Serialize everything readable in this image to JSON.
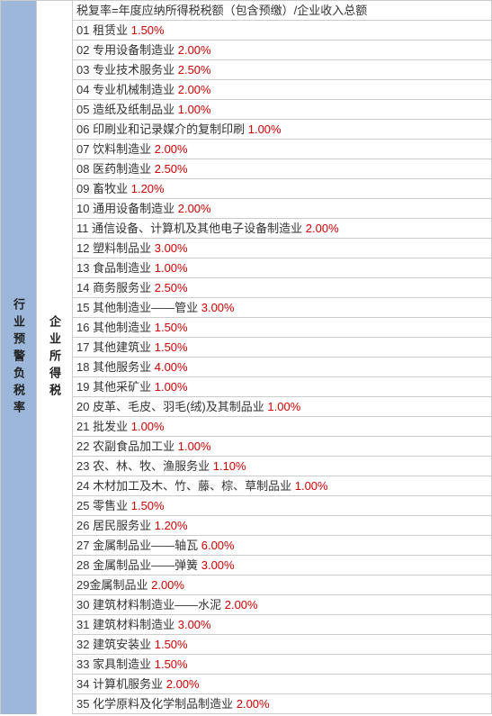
{
  "leftLabel": "行业预警负税率",
  "midLabel": "企业所得税",
  "headerRow": "税复率=年度应纳所得税税额（包含预缴）/企业收入总额",
  "rateColor": "#d00000",
  "borderColor": "#cccccc",
  "leftBg": "#9cb7d9",
  "rows": [
    {
      "num": "01",
      "name": "租赁业",
      "rate": "1.50%"
    },
    {
      "num": "02",
      "name": "专用设备制造业",
      "rate": "2.00%"
    },
    {
      "num": "03",
      "name": "专业技术服务业",
      "rate": "2.50%"
    },
    {
      "num": "04",
      "name": "专业机械制造业",
      "rate": "2.00%"
    },
    {
      "num": "05",
      "name": "造纸及纸制品业",
      "rate": "1.00%"
    },
    {
      "num": "06",
      "name": "印刷业和记录媒介的复制印刷",
      "rate": "1.00%"
    },
    {
      "num": "07",
      "name": "饮料制造业",
      "rate": "2.00%"
    },
    {
      "num": "08",
      "name": "医药制造业",
      "rate": "2.50%"
    },
    {
      "num": "09",
      "name": "畜牧业",
      "rate": "1.20%"
    },
    {
      "num": "10",
      "name": "通用设备制造业",
      "rate": "2.00%"
    },
    {
      "num": "11",
      "name": "通信设备、计算机及其他电子设备制造业",
      "rate": "2.00%"
    },
    {
      "num": "12",
      "name": "塑料制品业",
      "rate": "3.00%"
    },
    {
      "num": "13",
      "name": "食品制造业",
      "rate": "1.00%"
    },
    {
      "num": "14",
      "name": "商务服务业",
      "rate": "2.50%"
    },
    {
      "num": "15",
      "name": "其他制造业——管业",
      "rate": "3.00%"
    },
    {
      "num": "16",
      "name": "其他制造业",
      "rate": "1.50%"
    },
    {
      "num": "17",
      "name": "其他建筑业",
      "rate": "1.50%"
    },
    {
      "num": "18",
      "name": "其他服务业",
      "rate": "4.00%"
    },
    {
      "num": "19",
      "name": "其他采矿业",
      "rate": "1.00%"
    },
    {
      "num": "20",
      "name": "皮革、毛皮、羽毛(绒)及其制品业",
      "rate": "1.00%"
    },
    {
      "num": "21",
      "name": "批发业",
      "rate": "1.00%"
    },
    {
      "num": "22",
      "name": "农副食品加工业",
      "rate": "1.00%"
    },
    {
      "num": "23",
      "name": "农、林、牧、渔服务业",
      "rate": "1.10%"
    },
    {
      "num": "24",
      "name": "木材加工及木、竹、藤、棕、草制品业",
      "rate": "1.00%"
    },
    {
      "num": "25",
      "name": "零售业",
      "rate": "1.50%"
    },
    {
      "num": "26",
      "name": "居民服务业",
      "rate": "1.20%"
    },
    {
      "num": "27",
      "name": "金属制品业——轴瓦",
      "rate": "6.00%"
    },
    {
      "num": "28",
      "name": "金属制品业——弹簧",
      "rate": "3.00%"
    },
    {
      "num": "29",
      "name": "金属制品业",
      "rate": "2.00%",
      "nospace": true
    },
    {
      "num": "30",
      "name": "建筑材料制造业——水泥",
      "rate": "2.00%"
    },
    {
      "num": "31",
      "name": "建筑材料制造业",
      "rate": "3.00%"
    },
    {
      "num": "32",
      "name": "建筑安装业",
      "rate": "1.50%"
    },
    {
      "num": "33",
      "name": "家具制造业",
      "rate": "1.50%"
    },
    {
      "num": "34",
      "name": "计算机服务业",
      "rate": "2.00%"
    },
    {
      "num": "35",
      "name": "化学原料及化学制品制造业",
      "rate": "2.00%"
    }
  ]
}
